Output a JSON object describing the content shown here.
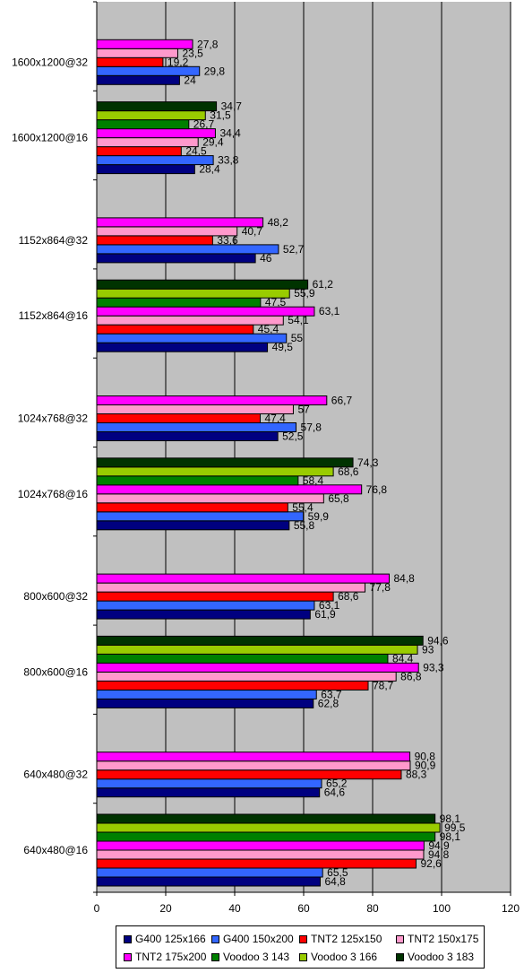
{
  "chart_data": {
    "type": "bar",
    "orientation": "horizontal",
    "title": "",
    "xlabel": "",
    "ylabel": "",
    "xlim": [
      0,
      120
    ],
    "x_ticks": [
      0,
      20,
      40,
      60,
      80,
      100,
      120
    ],
    "grid": "vertical",
    "legend_position": "bottom",
    "plot_background": "#c0c0c0",
    "series": [
      {
        "name": "G400 125x166",
        "color": "#000080"
      },
      {
        "name": "G400 150x200",
        "color": "#3366ff"
      },
      {
        "name": "TNT2 125x150",
        "color": "#ff0000"
      },
      {
        "name": "TNT2 150x175",
        "color": "#ff99cc"
      },
      {
        "name": "TNT2 175x200",
        "color": "#ff00ff"
      },
      {
        "name": "Voodoo 3 143",
        "color": "#008000"
      },
      {
        "name": "Voodoo 3 166",
        "color": "#99cc00"
      },
      {
        "name": "Voodoo 3 183",
        "color": "#003300"
      }
    ],
    "categories": [
      {
        "label": "1600x1200@32",
        "values": [
          24,
          29.8,
          19.2,
          23.5,
          27.8,
          null,
          null,
          null
        ],
        "value_labels": [
          "24",
          "29,8",
          "19,2",
          "23,5",
          "27,8",
          null,
          null,
          null
        ]
      },
      {
        "label": "1600x1200@16",
        "values": [
          28.4,
          33.8,
          24.5,
          29.4,
          34.4,
          26.7,
          31.5,
          34.7
        ],
        "value_labels": [
          "28,4",
          "33,8",
          "24,5",
          "29,4",
          "34,4",
          "26,7",
          "31,5",
          "34,7"
        ]
      },
      {
        "label": "1152x864@32",
        "values": [
          46,
          52.7,
          33.6,
          40.7,
          48.2,
          null,
          null,
          null
        ],
        "value_labels": [
          "46",
          "52,7",
          "33,6",
          "40,7",
          "48,2",
          null,
          null,
          null
        ]
      },
      {
        "label": "1152x864@16",
        "values": [
          49.5,
          55,
          45.4,
          54.1,
          63.1,
          47.5,
          55.9,
          61.2
        ],
        "value_labels": [
          "49,5",
          "55",
          "45,4",
          "54,1",
          "63,1",
          "47,5",
          "55,9",
          "61,2"
        ]
      },
      {
        "label": "1024x768@32",
        "values": [
          52.5,
          57.8,
          47.4,
          57,
          66.7,
          null,
          null,
          null
        ],
        "value_labels": [
          "52,5",
          "57,8",
          "47,4",
          "57",
          "66,7",
          null,
          null,
          null
        ]
      },
      {
        "label": "1024x768@16",
        "values": [
          55.8,
          59.9,
          55.4,
          65.8,
          76.8,
          58.4,
          68.6,
          74.3
        ],
        "value_labels": [
          "55,8",
          "59,9",
          "55,4",
          "65,8",
          "76,8",
          "58,4",
          "68,6",
          "74,3"
        ]
      },
      {
        "label": "800x600@32",
        "values": [
          61.9,
          63.1,
          68.6,
          77.8,
          84.8,
          null,
          null,
          null
        ],
        "value_labels": [
          "61,9",
          "63,1",
          "68,6",
          "77,8",
          "84,8",
          null,
          null,
          null
        ]
      },
      {
        "label": "800x600@16",
        "values": [
          62.8,
          63.7,
          78.7,
          86.8,
          93.3,
          84.4,
          93,
          94.6
        ],
        "value_labels": [
          "62,8",
          "63,7",
          "78,7",
          "86,8",
          "93,3",
          "84,4",
          "93",
          "94,6"
        ]
      },
      {
        "label": "640x480@32",
        "values": [
          64.6,
          65.2,
          88.3,
          90.9,
          90.8,
          null,
          null,
          null
        ],
        "value_labels": [
          "64,6",
          "65,2",
          "88,3",
          "90,9",
          "90,8",
          null,
          null,
          null
        ]
      },
      {
        "label": "640x480@16",
        "values": [
          64.8,
          65.5,
          92.6,
          94.8,
          94.9,
          98.1,
          99.5,
          98.1
        ],
        "value_labels": [
          "64,8",
          "65,5",
          "92,6",
          "94,8",
          "94,9",
          "98,1",
          "99,5",
          "98,1"
        ]
      }
    ]
  }
}
